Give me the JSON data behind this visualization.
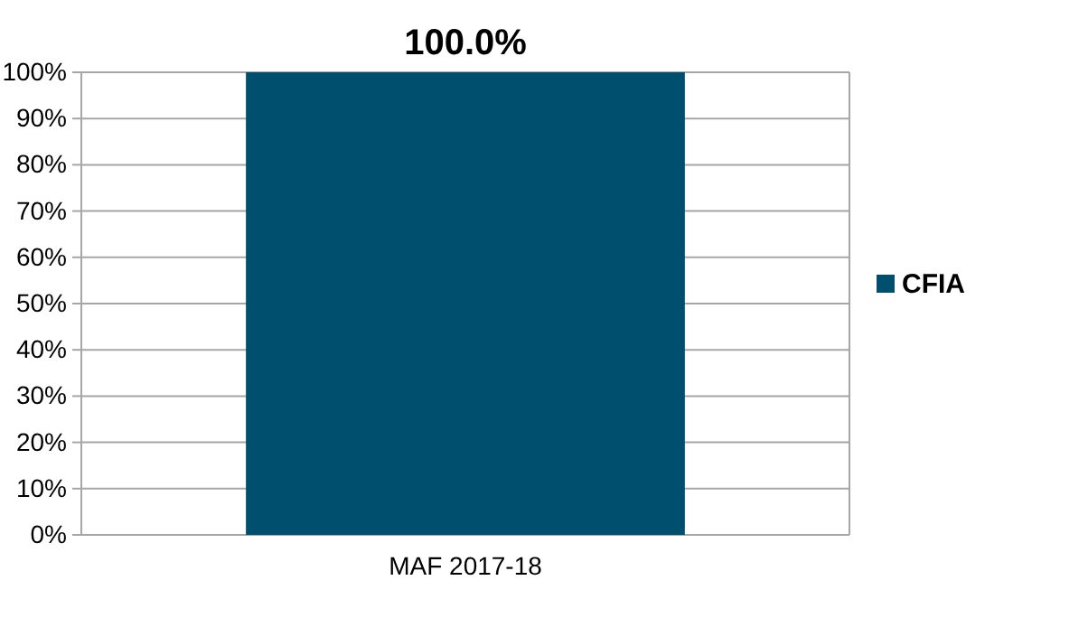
{
  "chart_data": {
    "type": "bar",
    "categories": [
      "MAF 2017-18"
    ],
    "series": [
      {
        "name": "CFIA",
        "color": "#004f6e",
        "values": [
          100
        ],
        "value_labels": [
          "100.0%"
        ]
      }
    ],
    "ylim": [
      0,
      100
    ],
    "yticks": [
      {
        "value": 0,
        "label": "0%"
      },
      {
        "value": 10,
        "label": "10%"
      },
      {
        "value": 20,
        "label": "20%"
      },
      {
        "value": 30,
        "label": "30%"
      },
      {
        "value": 40,
        "label": "40%"
      },
      {
        "value": 50,
        "label": "50%"
      },
      {
        "value": 60,
        "label": "60%"
      },
      {
        "value": 70,
        "label": "70%"
      },
      {
        "value": 80,
        "label": "80%"
      },
      {
        "value": 90,
        "label": "90%"
      },
      {
        "value": 100,
        "label": "100%"
      }
    ],
    "grid": "y",
    "legend": "right"
  }
}
